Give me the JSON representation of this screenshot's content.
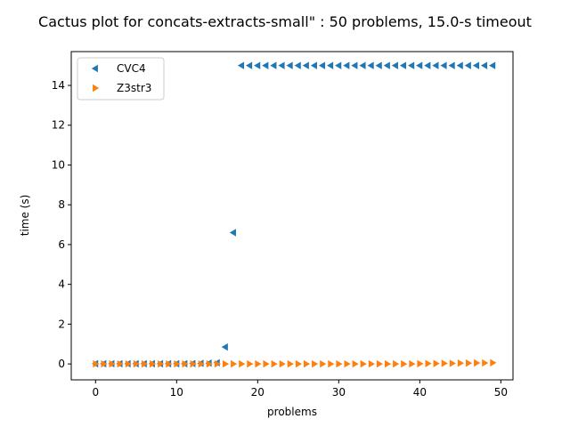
{
  "chart_data": {
    "type": "scatter",
    "title": "Cactus plot for concats-extracts-small\" : 50 problems, 15.0-s timeout",
    "xlabel": "problems",
    "ylabel": "time (s)",
    "xlim": [
      -3.0,
      51.5
    ],
    "ylim": [
      -0.8,
      15.7
    ],
    "xticks": [
      0,
      10,
      20,
      30,
      40,
      50
    ],
    "yticks": [
      0,
      2,
      4,
      6,
      8,
      10,
      12,
      14
    ],
    "grid": false,
    "legend_position": "upper-left",
    "series": [
      {
        "name": "CVC4",
        "marker": "triangle-left",
        "color": "#1f77b4",
        "x": [
          0,
          1,
          2,
          3,
          4,
          5,
          6,
          7,
          8,
          9,
          10,
          11,
          12,
          13,
          14,
          15,
          16,
          17,
          18,
          19,
          20,
          21,
          22,
          23,
          24,
          25,
          26,
          27,
          28,
          29,
          30,
          31,
          32,
          33,
          34,
          35,
          36,
          37,
          38,
          39,
          40,
          41,
          42,
          43,
          44,
          45,
          46,
          47,
          48,
          49
        ],
        "y": [
          0.01,
          0.01,
          0.01,
          0.01,
          0.01,
          0.01,
          0.01,
          0.01,
          0.01,
          0.01,
          0.01,
          0.01,
          0.02,
          0.03,
          0.04,
          0.06,
          0.85,
          6.6,
          15,
          15,
          15,
          15,
          15,
          15,
          15,
          15,
          15,
          15,
          15,
          15,
          15,
          15,
          15,
          15,
          15,
          15,
          15,
          15,
          15,
          15,
          15,
          15,
          15,
          15,
          15,
          15,
          15,
          15,
          15,
          15
        ]
      },
      {
        "name": "Z3str3",
        "marker": "triangle-right",
        "color": "#ff7f0e",
        "x": [
          0,
          1,
          2,
          3,
          4,
          5,
          6,
          7,
          8,
          9,
          10,
          11,
          12,
          13,
          14,
          15,
          16,
          17,
          18,
          19,
          20,
          21,
          22,
          23,
          24,
          25,
          26,
          27,
          28,
          29,
          30,
          31,
          32,
          33,
          34,
          35,
          36,
          37,
          38,
          39,
          40,
          41,
          42,
          43,
          44,
          45,
          46,
          47,
          48,
          49
        ],
        "y": [
          0.0,
          0.0,
          0.0,
          0.0,
          0.0,
          0.0,
          0.0,
          0.0,
          0.0,
          0.0,
          0.0,
          0.0,
          0.0,
          0.0,
          0.0,
          0.0,
          0.0,
          0.0,
          0.0,
          0.0,
          0.0,
          0.0,
          0.0,
          0.0,
          0.0,
          0.0,
          0.0,
          0.0,
          0.0,
          0.0,
          0.0,
          0.0,
          0.0,
          0.0,
          0.0,
          0.0,
          0.0,
          0.0,
          0.0,
          0.0,
          0.01,
          0.02,
          0.02,
          0.03,
          0.03,
          0.04,
          0.04,
          0.05,
          0.05,
          0.06
        ]
      }
    ]
  }
}
